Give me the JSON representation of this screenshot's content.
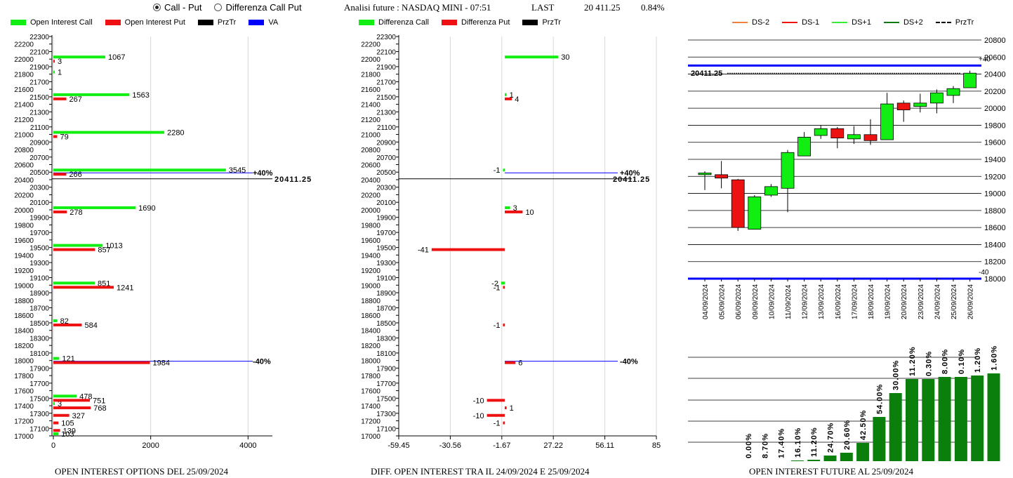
{
  "header": {
    "radio_options": [
      {
        "label": "Call - Put",
        "selected": true
      },
      {
        "label": "Differenza Call Put",
        "selected": false
      }
    ],
    "title": "Analisi future : NASDAQ MINI - 07:51",
    "last_label": "LAST",
    "last_value": "20 411.25",
    "change": "0.84%"
  },
  "captions": {
    "left": "OPEN INTEREST OPTIONS DEL 25/09/2024",
    "middle": "DIFF. OPEN INTEREST TRA IL 24/09/2024 E 25/09/2024",
    "right": "OPEN INTEREST FUTURE AL 25/09/2024"
  },
  "colors": {
    "call": "#11ee11",
    "put": "#ee1111",
    "prztr": "#000000",
    "va": "#0000ff",
    "future_bar": "#0b7f0b",
    "up_candle": "#11ee11",
    "down_candle": "#ee1111"
  },
  "chart_data": [
    {
      "type": "bar",
      "orientation": "horizontal",
      "legend": [
        {
          "label": "Open Interest Call",
          "color": "#11ee11",
          "kind": "box"
        },
        {
          "label": "Open Interest Put",
          "color": "#ee1111",
          "kind": "box"
        },
        {
          "label": "PrzTr",
          "color": "#000000",
          "kind": "box"
        },
        {
          "label": "VA",
          "color": "#0000ff",
          "kind": "box"
        }
      ],
      "y_ticks": [
        22300,
        22200,
        22100,
        22000,
        21900,
        21800,
        21700,
        21600,
        21500,
        21400,
        21300,
        21200,
        21100,
        21000,
        20900,
        20800,
        20700,
        20600,
        20500,
        20400,
        20300,
        20200,
        20100,
        20000,
        19900,
        19800,
        19700,
        19600,
        19500,
        19400,
        19300,
        19200,
        19100,
        19000,
        18900,
        18800,
        18700,
        18600,
        18500,
        18400,
        18300,
        18200,
        18100,
        18000,
        17900,
        17800,
        17700,
        17600,
        17500,
        17400,
        17300,
        17200,
        17100,
        17000
      ],
      "x_ticks": [
        "0",
        "2000",
        "4000"
      ],
      "xlim": [
        0,
        4500
      ],
      "ylim": [
        17000,
        22300
      ],
      "series": [
        {
          "name": "Open Interest Call",
          "points": [
            {
              "strike": 22000,
              "value": 1067,
              "label": "1067"
            },
            {
              "strike": 21800,
              "value": 1,
              "label": "1"
            },
            {
              "strike": 21500,
              "value": 1563,
              "label": "1563"
            },
            {
              "strike": 21000,
              "value": 2280,
              "label": "2280"
            },
            {
              "strike": 20500,
              "value": 3545,
              "label": "3545"
            },
            {
              "strike": 20000,
              "value": 1690,
              "label": "1690"
            },
            {
              "strike": 19500,
              "value": 1013,
              "label": "1013"
            },
            {
              "strike": 19000,
              "value": 851,
              "label": "851"
            },
            {
              "strike": 18500,
              "value": 82,
              "label": "82"
            },
            {
              "strike": 18000,
              "value": 121,
              "label": "121"
            },
            {
              "strike": 17500,
              "value": 478,
              "label": "478"
            },
            {
              "strike": 17400,
              "value": 3,
              "label": "3"
            },
            {
              "strike": 17000,
              "value": 103,
              "label": "103"
            }
          ]
        },
        {
          "name": "Open Interest Put",
          "points": [
            {
              "strike": 22000,
              "value": 3,
              "label": "3"
            },
            {
              "strike": 21500,
              "value": 267,
              "label": "267"
            },
            {
              "strike": 21000,
              "value": 79,
              "label": "79"
            },
            {
              "strike": 20500,
              "value": 266,
              "label": "266"
            },
            {
              "strike": 20000,
              "value": 278,
              "label": "278"
            },
            {
              "strike": 19500,
              "value": 857,
              "label": "857"
            },
            {
              "strike": 19000,
              "value": 1241,
              "label": "1241"
            },
            {
              "strike": 18500,
              "value": 584,
              "label": "584"
            },
            {
              "strike": 18000,
              "value": 1984,
              "label": "1984"
            },
            {
              "strike": 17500,
              "value": 751,
              "label": "751"
            },
            {
              "strike": 17400,
              "value": 768,
              "label": "768"
            },
            {
              "strike": 17300,
              "value": 327,
              "label": "327"
            },
            {
              "strike": 17200,
              "value": 105,
              "label": "105"
            },
            {
              "strike": 17100,
              "value": 139,
              "label": "139"
            }
          ]
        }
      ],
      "price_line": {
        "value": 20411.25,
        "label": "20411.25"
      },
      "va_lines": [
        {
          "strike": 20500,
          "label": "+40%"
        },
        {
          "strike": 18000,
          "label": "-40%"
        }
      ]
    },
    {
      "type": "bar",
      "orientation": "horizontal",
      "legend": [
        {
          "label": "Differenza Call",
          "color": "#11ee11",
          "kind": "box"
        },
        {
          "label": "Differenza Put",
          "color": "#ee1111",
          "kind": "box"
        },
        {
          "label": "PrzTr",
          "color": "#000000",
          "kind": "box"
        }
      ],
      "y_ticks": [
        22300,
        22200,
        22100,
        22000,
        21900,
        21800,
        21700,
        21600,
        21500,
        21400,
        21300,
        21200,
        21100,
        21000,
        20900,
        20800,
        20700,
        20600,
        20500,
        20400,
        20300,
        20200,
        20100,
        20000,
        19900,
        19800,
        19700,
        19600,
        19500,
        19400,
        19300,
        19200,
        19100,
        19000,
        18900,
        18800,
        18700,
        18600,
        18500,
        18400,
        18300,
        18200,
        18100,
        18000,
        17900,
        17800,
        17700,
        17600,
        17500,
        17400,
        17300,
        17200,
        17100,
        17000
      ],
      "x_ticks": [
        "-59.45",
        "-30.56",
        "-1.67",
        "27.22",
        "56.11",
        "85"
      ],
      "xlim": [
        -59.45,
        85
      ],
      "ylim": [
        17000,
        22300
      ],
      "series": [
        {
          "name": "Differenza Call",
          "points": [
            {
              "strike": 22000,
              "value": 30,
              "label": "30"
            },
            {
              "strike": 21500,
              "value": 1,
              "label": "1"
            },
            {
              "strike": 20500,
              "value": -1,
              "label": "-1"
            },
            {
              "strike": 20000,
              "value": 3,
              "label": "3"
            },
            {
              "strike": 19000,
              "value": -2,
              "label": "-2"
            }
          ]
        },
        {
          "name": "Differenza Put",
          "points": [
            {
              "strike": 21500,
              "value": 4,
              "label": "4"
            },
            {
              "strike": 20000,
              "value": 10,
              "label": "10"
            },
            {
              "strike": 19500,
              "value": -41,
              "label": "-41"
            },
            {
              "strike": 19000,
              "value": -1,
              "label": "-1"
            },
            {
              "strike": 18500,
              "value": -1,
              "label": "-1"
            },
            {
              "strike": 18000,
              "value": 6,
              "label": "6"
            },
            {
              "strike": 17500,
              "value": -10,
              "label": "-10"
            },
            {
              "strike": 17400,
              "value": 1,
              "label": "1"
            },
            {
              "strike": 17300,
              "value": -10,
              "label": "-10"
            },
            {
              "strike": 17200,
              "value": -1,
              "label": "-1"
            }
          ]
        }
      ],
      "price_line": {
        "value": 20411.25,
        "label": "20411.25"
      },
      "va_lines": [
        {
          "strike": 20500,
          "label": "+40%"
        },
        {
          "strike": 18000,
          "label": "-40%"
        }
      ]
    },
    {
      "type": "candlestick",
      "legend": [
        {
          "label": "DS-2",
          "color": "#f08040",
          "kind": "line"
        },
        {
          "label": "DS-1",
          "color": "#ee1111",
          "kind": "line"
        },
        {
          "label": "DS+1",
          "color": "#33ee33",
          "kind": "line"
        },
        {
          "label": "DS+2",
          "color": "#117711",
          "kind": "line"
        },
        {
          "label": "PrzTr",
          "color": "#000000",
          "kind": "dash"
        }
      ],
      "y_ticks": [
        20800,
        20600,
        20400,
        20200,
        20000,
        19800,
        19600,
        19400,
        19200,
        19000,
        18800,
        18600,
        18400,
        18200,
        18000
      ],
      "ylim": [
        18000,
        20800
      ],
      "dates": [
        "04/09/2024",
        "05/09/2024",
        "06/09/2024",
        "09/09/2024",
        "10/09/2024",
        "11/09/2024",
        "12/09/2024",
        "13/09/2024",
        "16/09/2024",
        "17/09/2024",
        "18/09/2024",
        "19/09/2024",
        "20/09/2024",
        "23/09/2024",
        "24/09/2024",
        "25/09/2024",
        "26/09/2024"
      ],
      "candles": [
        {
          "o": 19220,
          "h": 19260,
          "l": 19040,
          "c": 19240
        },
        {
          "o": 19220,
          "h": 19380,
          "l": 19060,
          "c": 19180
        },
        {
          "o": 19160,
          "h": 19170,
          "l": 18560,
          "c": 18600
        },
        {
          "o": 18580,
          "h": 18980,
          "l": 18580,
          "c": 18960
        },
        {
          "o": 18980,
          "h": 19110,
          "l": 18960,
          "c": 19080
        },
        {
          "o": 19060,
          "h": 19510,
          "l": 18780,
          "c": 19480
        },
        {
          "o": 19440,
          "h": 19720,
          "l": 19440,
          "c": 19660
        },
        {
          "o": 19680,
          "h": 19800,
          "l": 19640,
          "c": 19760
        },
        {
          "o": 19760,
          "h": 19780,
          "l": 19530,
          "c": 19650
        },
        {
          "o": 19640,
          "h": 19790,
          "l": 19580,
          "c": 19690
        },
        {
          "o": 19690,
          "h": 19870,
          "l": 19570,
          "c": 19620
        },
        {
          "o": 19630,
          "h": 20180,
          "l": 19630,
          "c": 20050
        },
        {
          "o": 20060,
          "h": 20090,
          "l": 19840,
          "c": 19980
        },
        {
          "o": 20020,
          "h": 20170,
          "l": 19950,
          "c": 20060
        },
        {
          "o": 20060,
          "h": 20220,
          "l": 19940,
          "c": 20180
        },
        {
          "o": 20150,
          "h": 20260,
          "l": 20060,
          "c": 20230
        },
        {
          "o": 20240,
          "h": 20440,
          "l": 20240,
          "c": 20411.25
        }
      ],
      "price_line": {
        "value": 20411.25,
        "label": "20411.25"
      },
      "va_lines": [
        {
          "value": 20500,
          "label": "+40"
        },
        {
          "value": 18000,
          "label": "-40"
        }
      ]
    },
    {
      "type": "bar",
      "values": [
        0.0,
        8.7,
        17.4,
        16.1,
        11.2,
        24.7,
        20.6,
        42.5,
        54.0,
        30.0,
        11.2,
        0.3,
        8.0,
        0.1,
        1.2,
        1.6
      ],
      "labels": [
        "0.00%",
        "8.70%",
        "17.40%",
        "16.10%",
        "11.20%",
        "24.70%",
        "20.60%",
        "42.50%",
        "54.00%",
        "30.00%",
        "11.20%",
        "0.30%",
        "8.00%",
        "0.10%",
        "1.20%",
        "1.60%"
      ],
      "heights": [
        0.0,
        0.0,
        0.0,
        1,
        2,
        8,
        12,
        26,
        63,
        97,
        117,
        117,
        120,
        120,
        122,
        125
      ]
    }
  ]
}
